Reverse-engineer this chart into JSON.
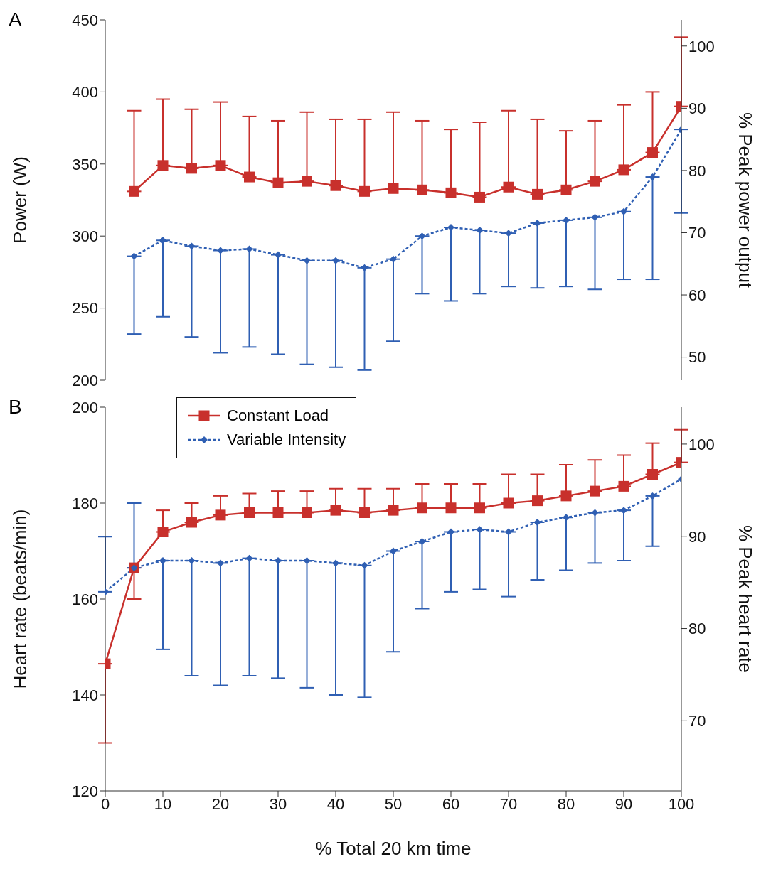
{
  "chart_data": [
    {
      "type": "line",
      "annotations": [
        "A"
      ],
      "ylabel": "Power (W)",
      "y2label": "% Peak power output",
      "xlim": [
        0,
        100
      ],
      "xticks": [
        0,
        10,
        20,
        30,
        40,
        50,
        60,
        70,
        80,
        90,
        100
      ],
      "ylim": [
        200,
        450
      ],
      "yticks": [
        200,
        250,
        300,
        350,
        400,
        450
      ],
      "y2lim": [
        46.3,
        104.2
      ],
      "y2ticks": [
        50,
        60,
        70,
        80,
        90,
        100
      ],
      "tick_labels": "y",
      "series": [
        {
          "color": "#c8302c",
          "marker": "square",
          "line_style": "solid",
          "x": [
            5,
            10,
            15,
            20,
            25,
            30,
            35,
            40,
            45,
            50,
            55,
            60,
            65,
            70,
            75,
            80,
            85,
            90,
            95,
            100
          ],
          "values": [
            331,
            349,
            347,
            349,
            341,
            337,
            338,
            335,
            331,
            333,
            332,
            330,
            327,
            334,
            329,
            332,
            338,
            346,
            358,
            390
          ],
          "errors": [
            [
              331,
              387
            ],
            [
              349,
              395
            ],
            [
              347,
              388
            ],
            [
              349,
              393
            ],
            [
              341,
              383
            ],
            [
              337,
              380
            ],
            [
              338,
              386
            ],
            [
              335,
              381
            ],
            [
              331,
              381
            ],
            [
              333,
              386
            ],
            [
              332,
              380
            ],
            [
              330,
              374
            ],
            [
              327,
              379
            ],
            [
              334,
              387
            ],
            [
              329,
              381
            ],
            [
              332,
              373
            ],
            [
              338,
              380
            ],
            [
              346,
              391
            ],
            [
              358,
              400
            ],
            [
              390,
              438
            ]
          ]
        },
        {
          "color": "#2f5fb3",
          "marker": "diamond",
          "line_style": "dashed",
          "x": [
            5,
            10,
            15,
            20,
            25,
            30,
            35,
            40,
            45,
            50,
            55,
            60,
            65,
            70,
            75,
            80,
            85,
            90,
            95,
            100
          ],
          "values": [
            286,
            297,
            293,
            290,
            291,
            287,
            283,
            283,
            278,
            284,
            300,
            306,
            304,
            302,
            309,
            311,
            313,
            317,
            341,
            374
          ],
          "errors": [
            [
              232,
              286
            ],
            [
              244,
              297
            ],
            [
              230,
              293
            ],
            [
              219,
              290
            ],
            [
              223,
              291
            ],
            [
              218,
              287
            ],
            [
              211,
              283
            ],
            [
              209,
              283
            ],
            [
              207,
              278
            ],
            [
              227,
              284
            ],
            [
              260,
              300
            ],
            [
              255,
              306
            ],
            [
              260,
              304
            ],
            [
              265,
              302
            ],
            [
              264,
              309
            ],
            [
              265,
              311
            ],
            [
              263,
              313
            ],
            [
              270,
              317
            ],
            [
              270,
              341
            ],
            [
              316,
              374
            ]
          ]
        }
      ]
    },
    {
      "type": "line",
      "annotations": [
        "B"
      ],
      "xlabel": "% Total 20 km time",
      "ylabel": "Heart rate (beats/min)",
      "y2label": "% Peak heart rate",
      "xlim": [
        0,
        100
      ],
      "xticks": [
        0,
        10,
        20,
        30,
        40,
        50,
        60,
        70,
        80,
        90,
        100
      ],
      "ylim": [
        120,
        200
      ],
      "yticks": [
        120,
        140,
        160,
        180,
        200
      ],
      "y2lim": [
        62.4,
        104
      ],
      "y2ticks": [
        70,
        80,
        90,
        100
      ],
      "legend": "top left",
      "series": [
        {
          "name": "Constant Load",
          "color": "#c8302c",
          "marker": "square",
          "line_style": "solid",
          "x": [
            0,
            5,
            10,
            15,
            20,
            25,
            30,
            35,
            40,
            45,
            50,
            55,
            60,
            65,
            70,
            75,
            80,
            85,
            90,
            95,
            100
          ],
          "values": [
            146.5,
            166.5,
            174,
            176,
            177.5,
            178,
            178,
            178,
            178.5,
            178,
            178.5,
            179,
            179,
            179,
            180,
            180.5,
            181.5,
            182.5,
            183.5,
            186,
            188.5
          ],
          "errors": [
            [
              130,
              146.5
            ],
            [
              160,
              166.5
            ],
            [
              174,
              178.5
            ],
            [
              176,
              180
            ],
            [
              177.5,
              181.5
            ],
            [
              178,
              182
            ],
            [
              178,
              182.5
            ],
            [
              178,
              182.5
            ],
            [
              178.5,
              183
            ],
            [
              178,
              183
            ],
            [
              178.5,
              183
            ],
            [
              179,
              184
            ],
            [
              179,
              184
            ],
            [
              179,
              184
            ],
            [
              180,
              186
            ],
            [
              180.5,
              186
            ],
            [
              181.5,
              188
            ],
            [
              182.5,
              189
            ],
            [
              183.5,
              190
            ],
            [
              186,
              192.5
            ],
            [
              188.5,
              195.3
            ]
          ]
        },
        {
          "name": "Variable Intensity",
          "color": "#2f5fb3",
          "marker": "diamond",
          "line_style": "dashed",
          "x": [
            0,
            5,
            10,
            15,
            20,
            25,
            30,
            35,
            40,
            45,
            50,
            55,
            60,
            65,
            70,
            75,
            80,
            85,
            90,
            95,
            100
          ],
          "values": [
            161.5,
            166.5,
            168,
            168,
            167.5,
            168.5,
            168,
            168,
            167.5,
            167,
            170,
            172,
            174,
            174.5,
            174,
            176,
            177,
            178,
            178.5,
            181.5,
            185
          ],
          "errors": [
            [
              161.5,
              173
            ],
            [
              166.5,
              180
            ],
            [
              149.5,
              168
            ],
            [
              144,
              168
            ],
            [
              142,
              167.5
            ],
            [
              144,
              168.5
            ],
            [
              143.5,
              168
            ],
            [
              141.5,
              168
            ],
            [
              140,
              167.5
            ],
            [
              139.5,
              167
            ],
            [
              149,
              170
            ],
            [
              158,
              172
            ],
            [
              161.5,
              174
            ],
            [
              162,
              174.5
            ],
            [
              160.5,
              174
            ],
            [
              164,
              176
            ],
            [
              166,
              177
            ],
            [
              167.5,
              178
            ],
            [
              168,
              178.5
            ],
            [
              171,
              181.5
            ],
            null
          ]
        }
      ]
    }
  ]
}
